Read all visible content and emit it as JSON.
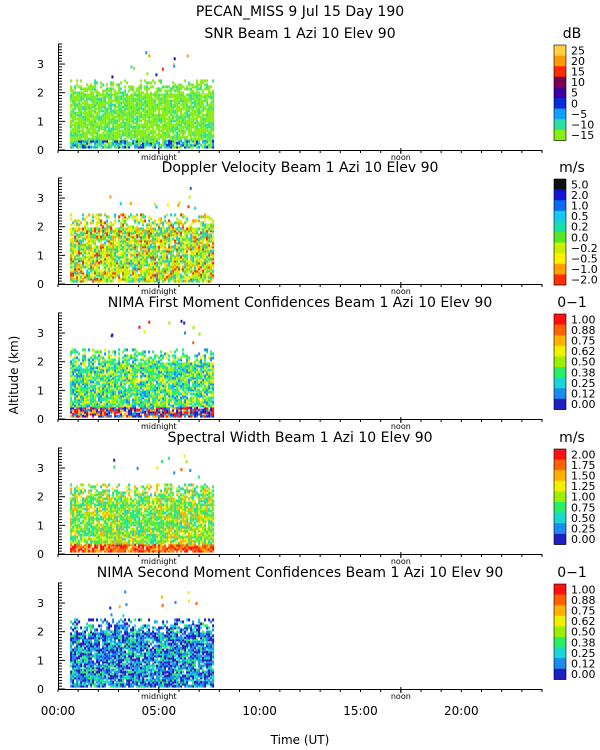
{
  "header": {
    "title_line1": "PECAN_MISS   9 Jul 15 Day 190"
  },
  "shared": {
    "y_axis_label": "Altitude (km)",
    "x_axis_label": "Time (UT)",
    "x_ticks": [
      "00:00",
      "05:00",
      "10:00",
      "15:00",
      "20:00"
    ],
    "x_tick_hours": [
      0,
      5,
      10,
      15,
      20
    ],
    "x_range_hours": [
      0,
      24
    ],
    "y_range_km": [
      0,
      3.7
    ],
    "y_ticks": [
      "0",
      "1",
      "2",
      "3"
    ],
    "y_tick_values": [
      0,
      1,
      2,
      3
    ],
    "marker_midnight": "midnight",
    "marker_noon": "noon",
    "midnight_hour": 5,
    "noon_hour": 17,
    "data_end_hour": 7.7
  },
  "chart_data": [
    {
      "type": "heatmap",
      "title": "SNR Beam 1 Azi  10 Elev 90",
      "unit": "dB",
      "colorbar_labels": [
        "25",
        "20",
        "15",
        "10",
        "5",
        "0",
        "−5",
        "−10",
        "−15"
      ],
      "colorbar_colors": [
        "#ffd040",
        "#ff9900",
        "#ff2a00",
        "#7a0055",
        "#3d00a0",
        "#0a2ae0",
        "#0fa0ff",
        "#2ae0a0",
        "#88ee11"
      ]
    },
    {
      "type": "heatmap",
      "title": "Doppler Velocity Beam 1 Azi  10 Elev 90",
      "unit": "m/s",
      "colorbar_labels": [
        "5.0",
        "2.0",
        "1.0",
        "0.5",
        "0.2",
        "0.0",
        "−0.2",
        "−0.5",
        "−1.0",
        "−2.0"
      ],
      "colorbar_colors": [
        "#101010",
        "#1414d8",
        "#0a6af0",
        "#12c8f5",
        "#12e0a8",
        "#55e822",
        "#c8f000",
        "#ffee00",
        "#ffa000",
        "#ff3000"
      ]
    },
    {
      "type": "heatmap",
      "title": "NIMA First Moment Confidences Beam 1 Azi  10 Elev 90",
      "unit": "0−1",
      "colorbar_labels": [
        "1.00",
        "0.88",
        "0.75",
        "0.62",
        "0.50",
        "0.38",
        "0.25",
        "0.12",
        "0.00"
      ],
      "colorbar_colors": [
        "#ff1010",
        "#ff6000",
        "#ffb000",
        "#f0f000",
        "#99f000",
        "#2aee66",
        "#16d8d0",
        "#1a8cf0",
        "#2020c0"
      ]
    },
    {
      "type": "heatmap",
      "title": "Spectral Width Beam 1 Azi  10 Elev 90",
      "unit": "m/s",
      "colorbar_labels": [
        "2.00",
        "1.75",
        "1.50",
        "1.25",
        "1.00",
        "0.75",
        "0.50",
        "0.25",
        "0.00"
      ],
      "colorbar_colors": [
        "#ff1010",
        "#ff6000",
        "#ffb000",
        "#f0f000",
        "#99f000",
        "#2aee66",
        "#16d8d0",
        "#1a8cf0",
        "#2020c0"
      ]
    },
    {
      "type": "heatmap",
      "title": "NIMA Second Moment Confidences Beam 1 Azi  10 Elev 90",
      "unit": "0−1",
      "colorbar_labels": [
        "1.00",
        "0.88",
        "0.75",
        "0.62",
        "0.50",
        "0.38",
        "0.25",
        "0.12",
        "0.00"
      ],
      "colorbar_colors": [
        "#ff1010",
        "#ff6000",
        "#ffb000",
        "#f0f000",
        "#99f000",
        "#2aee66",
        "#16d8d0",
        "#1a8cf0",
        "#2020c0"
      ]
    }
  ]
}
